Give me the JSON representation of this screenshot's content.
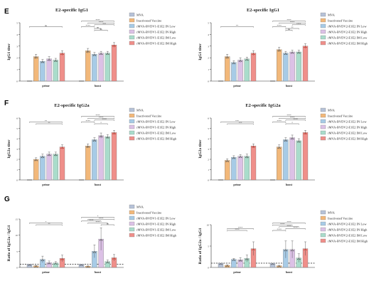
{
  "colors": {
    "MVA": "#b6c2d8",
    "Inactivated Vaccine": "#f2b87a",
    "Low": "#a7cbe6",
    "High": "#dcc1e6",
    "IMLow": "#a9dccb",
    "IMHigh": "#ef8f8a",
    "star": "#3a4f6e",
    "axis": "#333333"
  },
  "letters": [
    "E",
    "F",
    "G"
  ],
  "chart_data": [
    {
      "type": "bar",
      "title": "E2-specific IgG1",
      "ylabel": "IgG1 titer",
      "categories": [
        "prime",
        "boost"
      ],
      "ylim": [
        0,
        5
      ],
      "legend": [
        "MVA",
        "Inactivated Vaccine",
        "rMVA-BVDV1-E1E2 IN Low",
        "rMVA-BVDV1-E1E2 IN High",
        "rMVA-BVDV1-E1E2 IM Low",
        "rMVA-BVDV1-E1E2 IM High"
      ],
      "values": [
        [
          0,
          2.1,
          1.7,
          1.9,
          1.8,
          2.4
        ],
        [
          0,
          2.6,
          2.3,
          2.4,
          2.4,
          3.1
        ]
      ],
      "errors": [
        [
          0,
          0.2,
          0.15,
          0.2,
          0.15,
          0.2
        ],
        [
          0,
          0.2,
          0.15,
          0.15,
          0.15,
          0.2
        ]
      ],
      "sig": [
        {
          "group": 0,
          "from": 0,
          "to": 5,
          "level": 4,
          "label": "ns"
        },
        {
          "group": 1,
          "from": 0,
          "to": 5,
          "level": 7,
          "label": "****"
        },
        {
          "group": 1,
          "from": 1,
          "to": 5,
          "level": 6,
          "label": "****"
        },
        {
          "group": 1,
          "from": 2,
          "to": 5,
          "level": 5,
          "label": "***"
        },
        {
          "group": 1,
          "from": 0,
          "to": 2,
          "level": 4,
          "label": "****"
        },
        {
          "group": 1,
          "from": 2,
          "to": 3,
          "level": 3,
          "label": "ns"
        },
        {
          "group": 1,
          "from": 2,
          "to": 4,
          "level": 2,
          "label": "ns"
        }
      ]
    },
    {
      "type": "bar",
      "title": "E2-specific IgG1",
      "ylabel": "IgG1 titer",
      "categories": [
        "prime",
        "boost"
      ],
      "ylim": [
        0,
        5
      ],
      "legend": [
        "MVA",
        "Inactivated Vaccine",
        "rMVA-BVDV2-E1E2 IN Low",
        "rMVA-BVDV2-E1E2 IN High",
        "rMVA-BVDV2-E1E2 IM Low",
        "rMVA-BVDV2-E1E2 IM High"
      ],
      "values": [
        [
          0,
          2.1,
          1.6,
          1.8,
          1.9,
          2.4
        ],
        [
          0,
          2.7,
          2.4,
          2.5,
          2.5,
          3.0
        ]
      ],
      "errors": [
        [
          0,
          0.2,
          0.15,
          0.2,
          0.15,
          0.2
        ],
        [
          0,
          0.2,
          0.15,
          0.15,
          0.15,
          0.2
        ]
      ],
      "sig": [
        {
          "group": 0,
          "from": 0,
          "to": 5,
          "level": 4,
          "label": "**"
        },
        {
          "group": 1,
          "from": 0,
          "to": 5,
          "level": 7,
          "label": "****"
        },
        {
          "group": 1,
          "from": 1,
          "to": 5,
          "level": 6,
          "label": "****"
        },
        {
          "group": 1,
          "from": 3,
          "to": 5,
          "level": 5,
          "label": "****"
        },
        {
          "group": 1,
          "from": 0,
          "to": 2,
          "level": 4,
          "label": "****"
        },
        {
          "group": 1,
          "from": 2,
          "to": 4,
          "level": 3,
          "label": "**"
        },
        {
          "group": 1,
          "from": 2,
          "to": 3,
          "level": 2,
          "label": "ns"
        }
      ]
    },
    {
      "type": "bar",
      "title": "E2-specific IgG2a",
      "ylabel": "IgG2a titer",
      "categories": [
        "prime",
        "boost"
      ],
      "ylim": [
        0,
        6
      ],
      "legend": [
        "MVA",
        "Inactivated Vaccine",
        "rMVA-BVDV1-E1E2 IN Low",
        "rMVA-BVDV1-E1E2 IN High",
        "rMVA-BVDV1-E1E2 IM Low",
        "rMVA-BVDV1-E1E2 IM High"
      ],
      "values": [
        [
          0,
          2.0,
          2.3,
          2.5,
          2.5,
          3.2
        ],
        [
          0,
          3.3,
          3.9,
          4.3,
          4.2,
          4.6
        ]
      ],
      "errors": [
        [
          0,
          0.15,
          0.2,
          0.2,
          0.2,
          0.2
        ],
        [
          0,
          0.2,
          0.2,
          0.25,
          0.2,
          0.2
        ]
      ],
      "sig": [
        {
          "group": 0,
          "from": 0,
          "to": 5,
          "level": 4,
          "label": "**"
        },
        {
          "group": 0,
          "from": 1,
          "to": 5,
          "level": 3,
          "label": "**"
        },
        {
          "group": 1,
          "from": 0,
          "to": 5,
          "level": 7,
          "label": "****"
        },
        {
          "group": 1,
          "from": 1,
          "to": 5,
          "level": 6,
          "label": "****"
        },
        {
          "group": 1,
          "from": 2,
          "to": 5,
          "level": 5,
          "label": "****"
        },
        {
          "group": 1,
          "from": 0,
          "to": 2,
          "level": 4,
          "label": "****"
        },
        {
          "group": 1,
          "from": 2,
          "to": 4,
          "level": 3,
          "label": "*"
        }
      ]
    },
    {
      "type": "bar",
      "title": "E2-specific IgG2a",
      "ylabel": "IgG2a titer",
      "categories": [
        "prime",
        "boost"
      ],
      "ylim": [
        0,
        6
      ],
      "legend": [
        "MVA",
        "Inactivated Vaccine",
        "rMVA-BVDV2-E1E2 IN Low",
        "rMVA-BVDV2-E1E2 IN High",
        "rMVA-BVDV2-E1E2 IM Low",
        "rMVA-BVDV2-E1E2 IM High"
      ],
      "values": [
        [
          0,
          1.9,
          2.2,
          2.3,
          2.3,
          3.3
        ],
        [
          0,
          3.2,
          3.9,
          4.1,
          3.8,
          4.6
        ]
      ],
      "errors": [
        [
          0,
          0.15,
          0.15,
          0.15,
          0.2,
          0.2
        ],
        [
          0,
          0.2,
          0.2,
          0.25,
          0.2,
          0.2
        ]
      ],
      "sig": [
        {
          "group": 0,
          "from": 0,
          "to": 5,
          "level": 4,
          "label": "***"
        },
        {
          "group": 0,
          "from": 1,
          "to": 5,
          "level": 3,
          "label": "***"
        },
        {
          "group": 1,
          "from": 0,
          "to": 5,
          "level": 7,
          "label": "****"
        },
        {
          "group": 1,
          "from": 1,
          "to": 5,
          "level": 6,
          "label": "****"
        },
        {
          "group": 1,
          "from": 2,
          "to": 5,
          "level": 5,
          "label": "****"
        },
        {
          "group": 1,
          "from": 0,
          "to": 2,
          "level": 4,
          "label": "****"
        },
        {
          "group": 1,
          "from": 2,
          "to": 4,
          "level": 3,
          "label": "*"
        }
      ]
    },
    {
      "type": "bar",
      "title": "",
      "ylabel": "Ratio of IgG2a / IgG1",
      "categories": [
        "prime",
        "boost"
      ],
      "ylim": [
        0,
        15
      ],
      "legend": [
        "MVA",
        "Inactivated Vaccine",
        "rMVA-BVDV1-E1E2 IN Low",
        "rMVA-BVDV1-E1E2 IN High",
        "rMVA-BVDV1-E1E2 IM Low",
        "rMVA-BVDV1-E1E2 IM High"
      ],
      "values": [
        [
          1,
          0.5,
          2.5,
          1.5,
          1.4,
          2.8
        ],
        [
          1,
          0.4,
          5.0,
          8.8,
          1.8,
          3.0
        ]
      ],
      "errors": [
        [
          0,
          0.1,
          1.0,
          0.5,
          0.4,
          1.0
        ],
        [
          0,
          0.1,
          2.0,
          3.5,
          0.5,
          1.0
        ]
      ],
      "refline": 1,
      "sig": [
        {
          "group": 0,
          "from": 0,
          "to": 5,
          "level": 4,
          "label": "*"
        },
        {
          "group": 0,
          "from": 1,
          "to": 5,
          "level": 3,
          "label": "**"
        },
        {
          "group": 1,
          "from": 0,
          "to": 5,
          "level": 7,
          "label": "*"
        },
        {
          "group": 1,
          "from": 1,
          "to": 5,
          "level": 6,
          "label": "****"
        },
        {
          "group": 1,
          "from": 0,
          "to": 3,
          "level": 5,
          "label": "****"
        },
        {
          "group": 1,
          "from": 1,
          "to": 4,
          "level": 4,
          "label": "****"
        },
        {
          "group": 1,
          "from": 3,
          "to": 5,
          "level": 3,
          "label": "ns"
        }
      ]
    },
    {
      "type": "bar",
      "title": "",
      "ylabel": "Ratio of IgG2a / IgG1",
      "categories": [
        "prime",
        "boost"
      ],
      "ylim": [
        0,
        10
      ],
      "legend": [
        "MVA",
        "Inactivated Vaccine",
        "rMVA-BVDV2-E1E2 IN Low",
        "rMVA-BVDV2-E1E2 IN High",
        "rMVA-BVDV2-E1E2 IM Low",
        "rMVA-BVDV2-E1E2 IM High"
      ],
      "values": [
        [
          1,
          0.5,
          1.9,
          1.8,
          2.1,
          4.4
        ],
        [
          1,
          0.4,
          4.2,
          4.2,
          2.2,
          4.4
        ]
      ],
      "errors": [
        [
          0,
          0.1,
          0.2,
          0.5,
          0.8,
          1.6
        ],
        [
          0,
          0.1,
          2.0,
          2.0,
          1.0,
          1.6
        ]
      ],
      "refline": 1,
      "sig": [
        {
          "group": 0,
          "from": 1,
          "to": 5,
          "level": 4,
          "label": "****"
        },
        {
          "group": 0,
          "from": 1,
          "to": 4,
          "level": 3,
          "label": "****"
        },
        {
          "group": 1,
          "from": 0,
          "to": 5,
          "level": 7,
          "label": "****"
        },
        {
          "group": 1,
          "from": 0,
          "to": 3,
          "level": 6,
          "label": "****"
        },
        {
          "group": 1,
          "from": 1,
          "to": 4,
          "level": 5,
          "label": "****"
        },
        {
          "group": 1,
          "from": 2,
          "to": 5,
          "level": 4,
          "label": "****"
        },
        {
          "group": 1,
          "from": 0,
          "to": 2,
          "level": 3,
          "label": "****"
        }
      ]
    }
  ]
}
